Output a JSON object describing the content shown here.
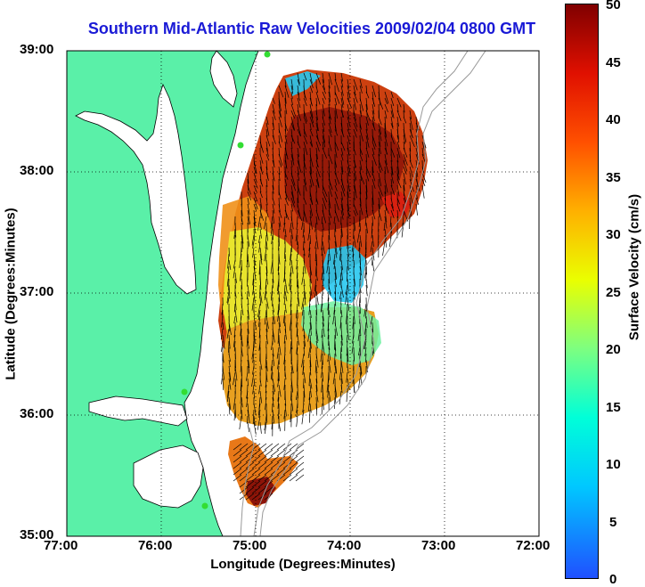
{
  "title": "Southern Mid-Atlantic Raw Velocities 2009/02/04 0800 GMT",
  "xlabel": "Longitude (Degrees:Minutes)",
  "ylabel": "Latitude (Degrees:Minutes)",
  "colorbar": {
    "label": "Surface Velocity (cm/s)",
    "ticks": [
      "0",
      "5",
      "10",
      "15",
      "20",
      "25",
      "30",
      "35",
      "40",
      "45",
      "50"
    ],
    "min": 0,
    "max": 50
  },
  "x_ticks": [
    "77:00",
    "76:00",
    "75:00",
    "74:00",
    "73:00",
    "72:00"
  ],
  "y_ticks": [
    "39:00",
    "38:00",
    "37:00",
    "36:00",
    "35:00"
  ],
  "colors": {
    "land": "#5af0a8",
    "ocean": "#ffffff",
    "title": "#1a1ad6",
    "coast": "#000000",
    "bathymetry": "#999999",
    "stations": "#33dd33"
  }
}
